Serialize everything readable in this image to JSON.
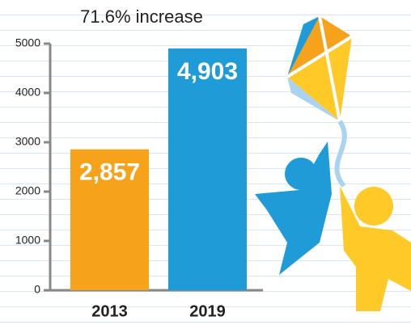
{
  "chart_data": {
    "type": "bar",
    "title": "71.6% increase",
    "categories": [
      "2013",
      "2019"
    ],
    "values": [
      2857,
      4903
    ],
    "value_labels": [
      "2,857",
      "4,903"
    ],
    "colors": [
      "#f7a21b",
      "#1f9bd7"
    ],
    "ylim": [
      0,
      5000
    ],
    "yticks": [
      0,
      1000,
      2000,
      3000,
      4000,
      5000
    ]
  }
}
